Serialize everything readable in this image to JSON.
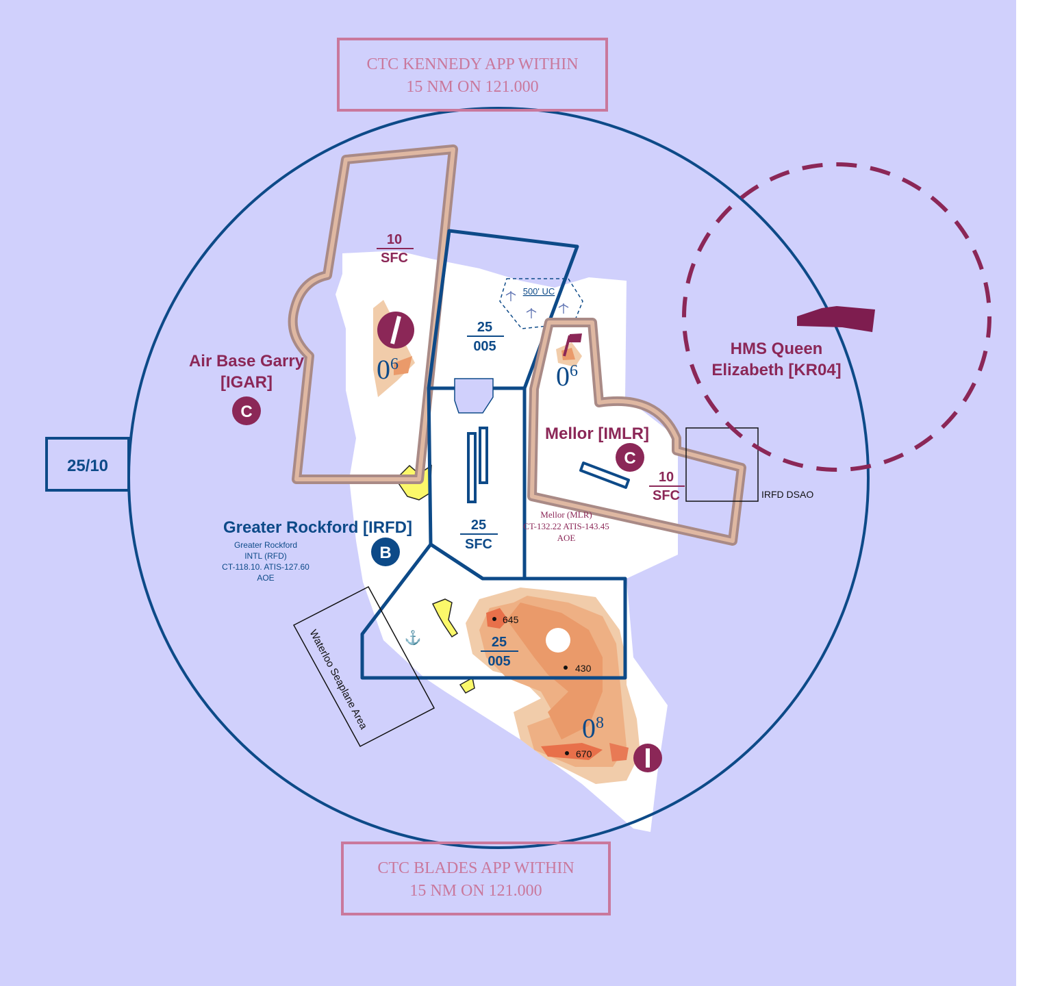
{
  "map": {
    "notice_top": {
      "line1": "CTC KENNEDY APP WITHIN",
      "line2": "15 NM ON 121.000"
    },
    "notice_bottom": {
      "line1": "CTC BLADES APP WITHIN",
      "line2": "15 NM ON 121.000"
    },
    "outer_altitude": "25/10",
    "garry": {
      "name": "Air Base Garry",
      "code": "[IGAR]",
      "class": "C",
      "ceiling": "10",
      "floor": "SFC",
      "mef_major": "0",
      "mef_minor": "6"
    },
    "rockford": {
      "name": "Greater Rockford [IRFD]",
      "class": "B",
      "info_line1": "Greater Rockford",
      "info_line2": "INTL (RFD)",
      "info_line3": "CT-118.10. ATIS-127.60",
      "info_line4": "AOE"
    },
    "mellor": {
      "name": "Mellor [IMLR]",
      "class": "C",
      "ceiling": "10",
      "floor": "SFC",
      "info_line1": "Mellor (MLR)",
      "info_line2": "CT-132.22 ATIS-143.45",
      "info_line3": "AOE",
      "mef_major": "0",
      "mef_minor": "6"
    },
    "hms": {
      "line1": "HMS Queen",
      "line2": "Elizabeth [KR04]"
    },
    "dsao_label": "IRFD DSAO",
    "windfarm_label": "500' UC",
    "seaplane_label": "Waterloo Seaplane Area",
    "sector_north": {
      "ceiling": "25",
      "floor": "005"
    },
    "sector_center": {
      "ceiling": "25",
      "floor": "SFC"
    },
    "sector_south": {
      "ceiling": "25",
      "floor": "005"
    },
    "spots": {
      "a": "645",
      "b": "430",
      "c": "670"
    },
    "south_mef_major": "0",
    "south_mef_minor": "8",
    "colors": {
      "water": "#d0d0fc",
      "land": "#ffffff",
      "class_b": "#0d4a88",
      "class_c": "#8b2757",
      "restricted": "#b89084",
      "notice": "#c9789c"
    }
  }
}
